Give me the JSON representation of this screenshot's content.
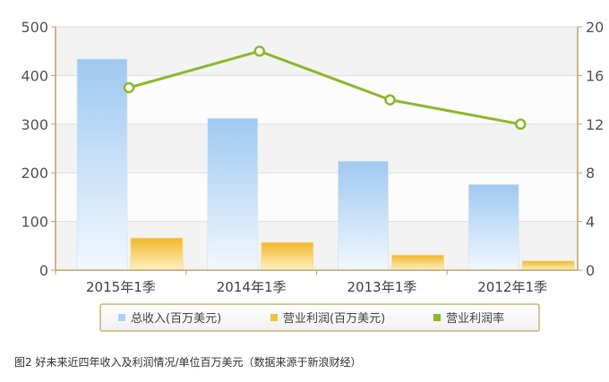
{
  "caption": "图2 好未来近四年收入及利润情况/单位百万美元（数据来源于新浪财经）",
  "chart_data": {
    "type": "bar",
    "categories": [
      "2015年1季",
      "2014年1季",
      "2013年1季",
      "2012年1季"
    ],
    "series": [
      {
        "name": "总收入(百万美元)",
        "kind": "bar",
        "axis": "left",
        "values": [
          434,
          312,
          224,
          176
        ]
      },
      {
        "name": "营业利润(百万美元)",
        "kind": "bar",
        "axis": "left",
        "values": [
          66,
          57,
          31,
          19
        ]
      },
      {
        "name": "营业利润率",
        "kind": "line",
        "axis": "right",
        "values": [
          15,
          18,
          14,
          12
        ]
      }
    ],
    "left_axis": {
      "ticks": [
        "0",
        "100",
        "200",
        "300",
        "400",
        "500"
      ],
      "range": [
        0,
        500
      ]
    },
    "right_axis": {
      "ticks": [
        "0",
        "4",
        "8",
        "12",
        "16",
        "20"
      ],
      "range": [
        0,
        20
      ]
    },
    "grid": true,
    "legend_placement": "bottom",
    "colors": {
      "revenue": "#aed2f2",
      "profit": "#f2c23c",
      "margin": "#8db82c",
      "axis": "#b9a46a",
      "legend_border": "#c9b57a"
    }
  }
}
